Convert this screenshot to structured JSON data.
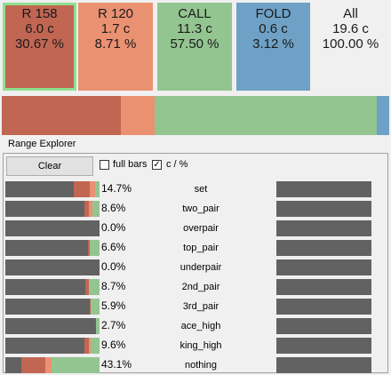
{
  "colors": {
    "raise_big": "#c16653",
    "raise_small": "#ea9172",
    "call": "#93c591",
    "fold": "#6ea1c5",
    "all": "#f0f0f0",
    "gray": "#626262",
    "selected_border": "#8fe08f"
  },
  "tiles": [
    {
      "name": "R 158",
      "value": "6.0 c",
      "pct": "30.67 %",
      "color": "#c16653",
      "selected": true
    },
    {
      "name": "R 120",
      "value": "1.7 c",
      "pct": "8.71 %",
      "color": "#ea9172",
      "selected": false
    },
    {
      "name": "CALL",
      "value": "11.3 c",
      "pct": "57.50 %",
      "color": "#93c591",
      "selected": false
    },
    {
      "name": "FOLD",
      "value": "0.6 c",
      "pct": "3.12 %",
      "color": "#6ea1c5",
      "selected": false
    },
    {
      "name": "All",
      "value": "19.6 c",
      "pct": "100.00 %",
      "color": "#f0f0f0",
      "selected": false
    }
  ],
  "strategy_strip": [
    {
      "fraction": 0.3067,
      "color": "#c16653"
    },
    {
      "fraction": 0.0871,
      "color": "#ea9172"
    },
    {
      "fraction": 0.575,
      "color": "#93c591"
    },
    {
      "fraction": 0.0312,
      "color": "#6ea1c5"
    }
  ],
  "explorer": {
    "title": "Range Explorer",
    "clear_label": "Clear",
    "full_bars_label": "full bars",
    "full_bars_checked": false,
    "c_pct_label": "c / %",
    "c_pct_checked": true,
    "rows": [
      {
        "pct": "14.7%",
        "name": "set",
        "segments": [
          {
            "f": 0.73,
            "c": "#626262"
          },
          {
            "f": 0.17,
            "c": "#c16653"
          },
          {
            "f": 0.05,
            "c": "#ea9172"
          },
          {
            "f": 0.05,
            "c": "#93c591"
          }
        ]
      },
      {
        "pct": "8.6%",
        "name": "two_pair",
        "segments": [
          {
            "f": 0.84,
            "c": "#626262"
          },
          {
            "f": 0.05,
            "c": "#c16653"
          },
          {
            "f": 0.03,
            "c": "#ea9172"
          },
          {
            "f": 0.08,
            "c": "#93c591"
          }
        ]
      },
      {
        "pct": "0.0%",
        "name": "overpair",
        "segments": [
          {
            "f": 1.0,
            "c": "#626262"
          }
        ]
      },
      {
        "pct": "6.6%",
        "name": "top_pair",
        "segments": [
          {
            "f": 0.88,
            "c": "#626262"
          },
          {
            "f": 0.02,
            "c": "#c16653"
          },
          {
            "f": 0.1,
            "c": "#93c591"
          }
        ]
      },
      {
        "pct": "0.0%",
        "name": "underpair",
        "segments": [
          {
            "f": 1.0,
            "c": "#626262"
          }
        ]
      },
      {
        "pct": "8.7%",
        "name": "2nd_pair",
        "segments": [
          {
            "f": 0.85,
            "c": "#626262"
          },
          {
            "f": 0.04,
            "c": "#c16653"
          },
          {
            "f": 0.11,
            "c": "#93c591"
          }
        ]
      },
      {
        "pct": "5.9%",
        "name": "3rd_pair",
        "segments": [
          {
            "f": 0.9,
            "c": "#626262"
          },
          {
            "f": 0.01,
            "c": "#c16653"
          },
          {
            "f": 0.09,
            "c": "#93c591"
          }
        ]
      },
      {
        "pct": "2.7%",
        "name": "ace_high",
        "segments": [
          {
            "f": 0.96,
            "c": "#626262"
          },
          {
            "f": 0.04,
            "c": "#93c591"
          }
        ]
      },
      {
        "pct": "9.6%",
        "name": "king_high",
        "segments": [
          {
            "f": 0.84,
            "c": "#626262"
          },
          {
            "f": 0.05,
            "c": "#c16653"
          },
          {
            "f": 0.02,
            "c": "#ea9172"
          },
          {
            "f": 0.09,
            "c": "#93c591"
          }
        ]
      },
      {
        "pct": "43.1%",
        "name": "nothing",
        "segments": [
          {
            "f": 0.17,
            "c": "#626262"
          },
          {
            "f": 0.25,
            "c": "#c16653"
          },
          {
            "f": 0.07,
            "c": "#ea9172"
          },
          {
            "f": 0.51,
            "c": "#93c591"
          }
        ]
      }
    ]
  }
}
